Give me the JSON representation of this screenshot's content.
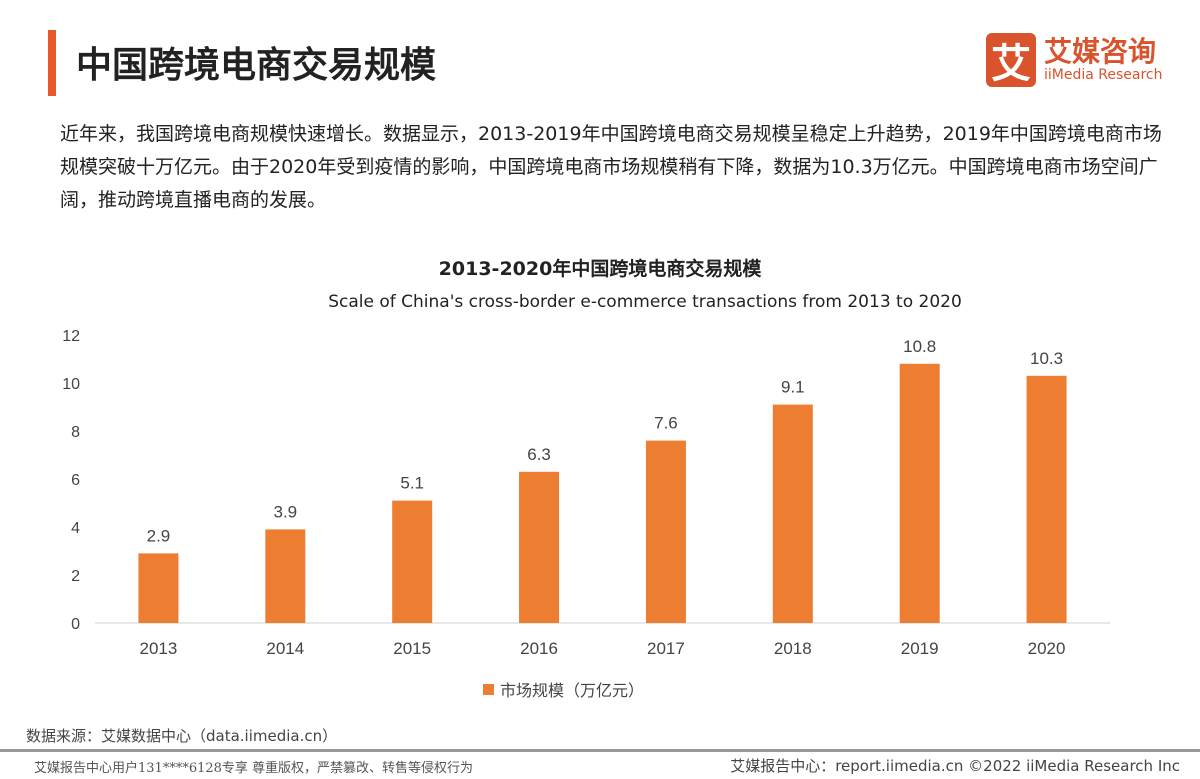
{
  "header": {
    "title": "中国跨境电商交易规模",
    "logo_cn": "艾媒咨询",
    "logo_en": "iiMedia Research",
    "logo_mark": "艾"
  },
  "intro": "近年来，我国跨境电商规模快速增长。数据显示，2013-2019年中国跨境电商交易规模呈稳定上升趋势，2019年中国跨境电商市场规模突破十万亿元。由于2020年受到疫情的影响，中国跨境电商市场规模稍有下降，数据为10.3万亿元。中国跨境电商市场空间广阔，推动跨境直播电商的发展。",
  "chart_data": {
    "type": "bar",
    "title": "2013-2020年中国跨境电商交易规模",
    "subtitle": "Scale of China's cross-border e-commerce transactions from 2013 to 2020",
    "categories": [
      "2013",
      "2014",
      "2015",
      "2016",
      "2017",
      "2018",
      "2019",
      "2020"
    ],
    "series": [
      {
        "name": "市场规模（万亿元）",
        "values": [
          2.9,
          3.9,
          5.1,
          6.3,
          7.6,
          9.1,
          10.8,
          10.3
        ]
      }
    ],
    "ylim": [
      0,
      12
    ],
    "yticks": [
      0,
      2,
      4,
      6,
      8,
      10,
      12
    ],
    "grid": false,
    "legend": "bottom",
    "color": "#ED7D31"
  },
  "footer": {
    "source": "数据来源：艾媒数据中心（data.iimedia.cn）",
    "left": "艾媒报告中心用户131****6128专享 尊重版权，严禁篡改、转售等侵权行为",
    "right": "艾媒报告中心：report.iimedia.cn   ©2022  iiMedia Research Inc"
  }
}
